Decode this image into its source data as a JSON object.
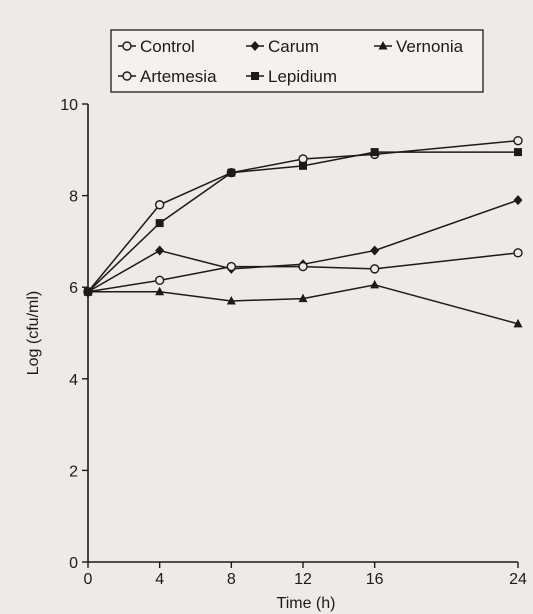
{
  "chart_data": {
    "type": "line",
    "title": "",
    "xlabel": "Time (h)",
    "ylabel": "Log (cfu/ml)",
    "x": [
      0,
      4,
      8,
      12,
      16,
      24
    ],
    "xticks": [
      0,
      4,
      8,
      12,
      16,
      24
    ],
    "yticks": [
      0,
      2,
      4,
      6,
      8,
      10
    ],
    "xlim": [
      0,
      24
    ],
    "ylim": [
      0,
      10
    ],
    "grid": false,
    "legend_position": "top",
    "series": [
      {
        "name": "Control",
        "marker": "circle-open",
        "values": [
          5.9,
          7.8,
          8.5,
          8.8,
          8.9,
          9.2
        ]
      },
      {
        "name": "Carum",
        "marker": "diamond-filled",
        "values": [
          5.9,
          6.8,
          6.4,
          6.5,
          6.8,
          7.9
        ]
      },
      {
        "name": "Vernonia",
        "marker": "triangle-filled",
        "values": [
          5.9,
          5.9,
          5.7,
          5.75,
          6.05,
          5.2
        ]
      },
      {
        "name": "Artemesia",
        "marker": "circle-open",
        "values": [
          5.9,
          6.15,
          6.45,
          6.45,
          6.4,
          6.75
        ]
      },
      {
        "name": "Lepidium",
        "marker": "square-filled",
        "values": [
          5.9,
          7.4,
          8.5,
          8.65,
          8.95,
          8.95
        ]
      }
    ],
    "colors": {
      "ink": "#1b1b1b",
      "background": "#ecebea"
    }
  }
}
